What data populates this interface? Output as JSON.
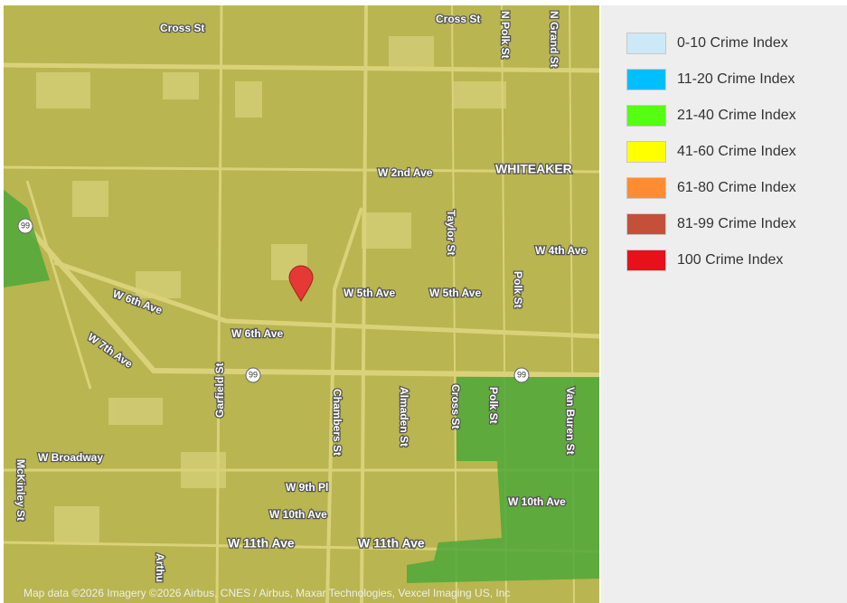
{
  "street_labels": [
    "Cross St",
    "Cross St",
    "N Polk St",
    "N Grand St",
    "W 2nd Ave",
    "WHITEAKER",
    "Taylor St",
    "W 4th Ave",
    "W 5th Ave",
    "W 5th Ave",
    "Polk St",
    "W 6th Ave",
    "W 6th Ave",
    "W 7th Ave",
    "Garfield St",
    "Chambers St",
    "Almaden St",
    "Cross St",
    "Polk St",
    "Van Buren St",
    "W Broadway",
    "McKinley St",
    "W 9th Pl",
    "W 10th Ave",
    "W 10th Ave",
    "W 11th Ave",
    "W 11th Ave",
    "Arthu"
  ],
  "highway_shields": [
    "99",
    "99",
    "99"
  ],
  "attribution": "Map data ©2026 Imagery ©2026 Airbus, CNES / Airbus, Maxar Technologies, Vexcel Imaging US, Inc",
  "legend": [
    {
      "label": "0-10 Crime Index",
      "color": "#cde9f8"
    },
    {
      "label": "11-20 Crime Index",
      "color": "#00bfff"
    },
    {
      "label": "21-40 Crime Index",
      "color": "#55ff11"
    },
    {
      "label": "41-60 Crime Index",
      "color": "#ffff00"
    },
    {
      "label": "61-80 Crime Index",
      "color": "#ff8c33"
    },
    {
      "label": "81-99 Crime Index",
      "color": "#c4503a"
    },
    {
      "label": "100 Crime Index",
      "color": "#e8101a"
    }
  ]
}
